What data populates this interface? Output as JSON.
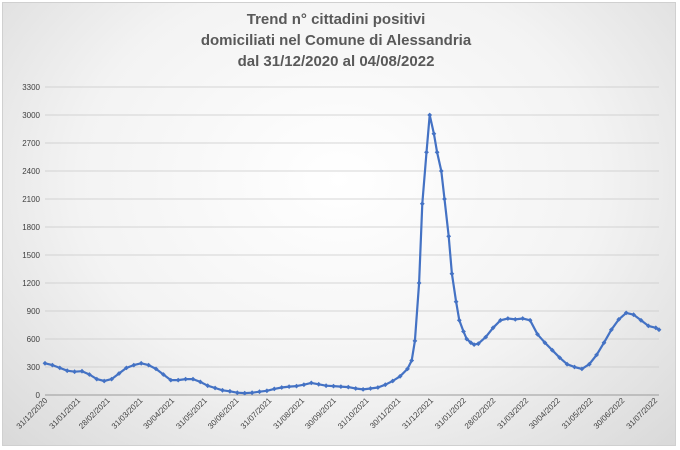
{
  "chart_data": {
    "type": "line",
    "title_lines": [
      "Trend n° cittadini positivi",
      "domiciliati nel Comune di Alessandria",
      "dal 31/12/2020 al 04/08/2022"
    ],
    "xlabel": "",
    "ylabel": "",
    "ylim": [
      0,
      3300
    ],
    "yticks": [
      0,
      300,
      600,
      900,
      1200,
      1500,
      1800,
      2100,
      2400,
      2700,
      3000,
      3300
    ],
    "xlim": [
      "2020-12-31",
      "2022-08-04"
    ],
    "xticks": [
      "31/12/2020",
      "31/01/2021",
      "28/02/2021",
      "31/03/2021",
      "30/04/2021",
      "31/05/2021",
      "30/06/2021",
      "31/07/2021",
      "31/08/2021",
      "30/09/2021",
      "31/10/2021",
      "30/11/2021",
      "31/12/2021",
      "31/01/2022",
      "28/02/2022",
      "31/03/2022",
      "30/04/2022",
      "31/05/2022",
      "30/06/2022",
      "31/07/2022"
    ],
    "grid": true,
    "legend": "none",
    "color": "#4472c4",
    "series": [
      {
        "x": [
          "2020-12-31",
          "2021-01-07",
          "2021-01-14",
          "2021-01-21",
          "2021-01-28",
          "2021-02-04",
          "2021-02-11",
          "2021-02-18",
          "2021-02-25",
          "2021-03-04",
          "2021-03-11",
          "2021-03-18",
          "2021-03-25",
          "2021-04-01",
          "2021-04-08",
          "2021-04-15",
          "2021-04-22",
          "2021-04-29",
          "2021-05-06",
          "2021-05-13",
          "2021-05-20",
          "2021-05-27",
          "2021-06-03",
          "2021-06-10",
          "2021-06-17",
          "2021-06-24",
          "2021-07-01",
          "2021-07-08",
          "2021-07-15",
          "2021-07-22",
          "2021-07-29",
          "2021-08-05",
          "2021-08-12",
          "2021-08-19",
          "2021-08-26",
          "2021-09-02",
          "2021-09-09",
          "2021-09-16",
          "2021-09-23",
          "2021-09-30",
          "2021-10-07",
          "2021-10-14",
          "2021-10-21",
          "2021-10-28",
          "2021-11-04",
          "2021-11-11",
          "2021-11-18",
          "2021-11-25",
          "2021-12-02",
          "2021-12-09",
          "2021-12-13",
          "2021-12-16",
          "2021-12-20",
          "2021-12-23",
          "2021-12-27",
          "2021-12-30",
          "2022-01-03",
          "2022-01-06",
          "2022-01-10",
          "2022-01-13",
          "2022-01-17",
          "2022-01-20",
          "2022-01-24",
          "2022-01-27",
          "2022-01-31",
          "2022-02-03",
          "2022-02-07",
          "2022-02-10",
          "2022-02-14",
          "2022-02-21",
          "2022-02-28",
          "2022-03-07",
          "2022-03-14",
          "2022-03-21",
          "2022-03-28",
          "2022-04-04",
          "2022-04-11",
          "2022-04-18",
          "2022-04-25",
          "2022-05-02",
          "2022-05-09",
          "2022-05-16",
          "2022-05-23",
          "2022-05-30",
          "2022-06-06",
          "2022-06-13",
          "2022-06-20",
          "2022-06-27",
          "2022-07-04",
          "2022-07-11",
          "2022-07-18",
          "2022-07-25",
          "2022-08-01",
          "2022-08-04"
        ],
        "y": [
          340,
          320,
          290,
          260,
          250,
          255,
          220,
          170,
          150,
          170,
          230,
          290,
          320,
          340,
          320,
          280,
          220,
          160,
          160,
          170,
          170,
          140,
          100,
          75,
          50,
          40,
          25,
          20,
          25,
          35,
          45,
          65,
          80,
          90,
          95,
          110,
          130,
          115,
          100,
          95,
          90,
          85,
          70,
          60,
          70,
          80,
          110,
          150,
          200,
          280,
          370,
          580,
          1200,
          2050,
          2600,
          3000,
          2800,
          2600,
          2400,
          2100,
          1700,
          1300,
          1000,
          800,
          680,
          600,
          560,
          540,
          550,
          620,
          720,
          800,
          820,
          810,
          820,
          800,
          650,
          560,
          480,
          400,
          330,
          300,
          280,
          330,
          430,
          560,
          700,
          810,
          880,
          860,
          800,
          740,
          720,
          700
        ]
      }
    ]
  }
}
